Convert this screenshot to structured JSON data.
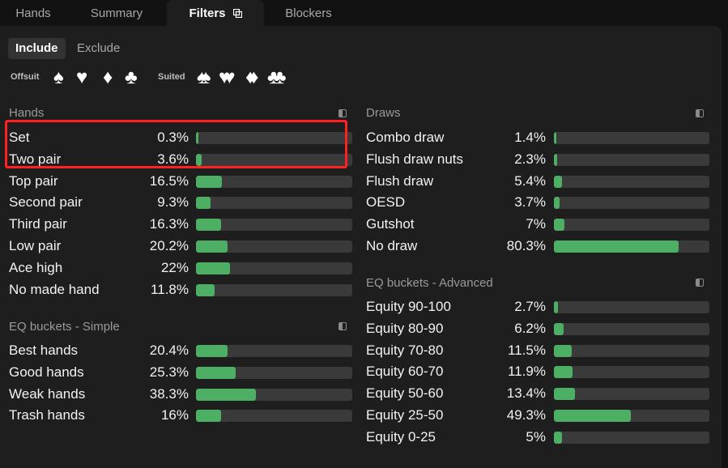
{
  "tabs": [
    {
      "label": "Hands",
      "active": false
    },
    {
      "label": "Summary",
      "active": false
    },
    {
      "label": "Filters",
      "active": true
    },
    {
      "label": "Blockers",
      "active": false
    }
  ],
  "mode": {
    "include_label": "Include",
    "exclude_label": "Exclude",
    "selected": "Include"
  },
  "suits": {
    "offsuit_label": "Offsuit",
    "suited_label": "Suited",
    "offsuit": [
      "♠",
      "♥",
      "♦",
      "♣"
    ],
    "suited": [
      "♠♠",
      "♥♥",
      "♦♦",
      "♣♣"
    ]
  },
  "colors": {
    "bar_fill": "#4caf64",
    "bar_track": "#3a3a3a",
    "highlight": "#ff2020"
  },
  "hands": {
    "title": "Hands",
    "rows": [
      {
        "label": "Set",
        "pct": "0.3%",
        "value": 0.3
      },
      {
        "label": "Two pair",
        "pct": "3.6%",
        "value": 3.6
      },
      {
        "label": "Top pair",
        "pct": "16.5%",
        "value": 16.5
      },
      {
        "label": "Second pair",
        "pct": "9.3%",
        "value": 9.3
      },
      {
        "label": "Third pair",
        "pct": "16.3%",
        "value": 16.3
      },
      {
        "label": "Low pair",
        "pct": "20.2%",
        "value": 20.2
      },
      {
        "label": "Ace high",
        "pct": "22%",
        "value": 22
      },
      {
        "label": "No made hand",
        "pct": "11.8%",
        "value": 11.8
      }
    ]
  },
  "eq_simple": {
    "title": "EQ buckets - Simple",
    "rows": [
      {
        "label": "Best hands",
        "pct": "20.4%",
        "value": 20.4
      },
      {
        "label": "Good hands",
        "pct": "25.3%",
        "value": 25.3
      },
      {
        "label": "Weak hands",
        "pct": "38.3%",
        "value": 38.3
      },
      {
        "label": "Trash hands",
        "pct": "16%",
        "value": 16
      }
    ]
  },
  "draws": {
    "title": "Draws",
    "rows": [
      {
        "label": "Combo draw",
        "pct": "1.4%",
        "value": 1.4
      },
      {
        "label": "Flush draw nuts",
        "pct": "2.3%",
        "value": 2.3
      },
      {
        "label": "Flush draw",
        "pct": "5.4%",
        "value": 5.4
      },
      {
        "label": "OESD",
        "pct": "3.7%",
        "value": 3.7
      },
      {
        "label": "Gutshot",
        "pct": "7%",
        "value": 7
      },
      {
        "label": "No draw",
        "pct": "80.3%",
        "value": 80.3
      }
    ]
  },
  "eq_advanced": {
    "title": "EQ buckets - Advanced",
    "rows": [
      {
        "label": "Equity 90-100",
        "pct": "2.7%",
        "value": 2.7
      },
      {
        "label": "Equity 80-90",
        "pct": "6.2%",
        "value": 6.2
      },
      {
        "label": "Equity 70-80",
        "pct": "11.5%",
        "value": 11.5
      },
      {
        "label": "Equity 60-70",
        "pct": "11.9%",
        "value": 11.9
      },
      {
        "label": "Equity 50-60",
        "pct": "13.4%",
        "value": 13.4
      },
      {
        "label": "Equity 25-50",
        "pct": "49.3%",
        "value": 49.3
      },
      {
        "label": "Equity 0-25",
        "pct": "5%",
        "value": 5
      }
    ]
  }
}
